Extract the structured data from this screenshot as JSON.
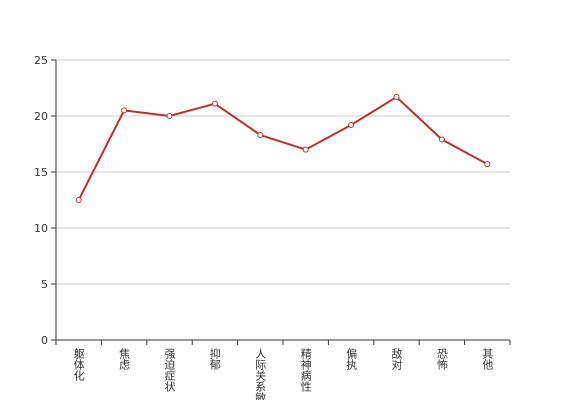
{
  "chart_data": {
    "type": "line",
    "categories": [
      "躯体化",
      "焦虑",
      "强迫症状",
      "抑郁",
      "人际关系敏感",
      "精神病性",
      "偏执",
      "敌对",
      "恐怖",
      "其他"
    ],
    "values": [
      12.5,
      20.5,
      20.0,
      21.1,
      18.3,
      17.0,
      19.2,
      21.7,
      17.9,
      15.7
    ],
    "color": "#b8312f",
    "ylim": [
      0,
      25
    ],
    "yticks": [
      0,
      5,
      10,
      15,
      20,
      25
    ],
    "grid": true
  }
}
